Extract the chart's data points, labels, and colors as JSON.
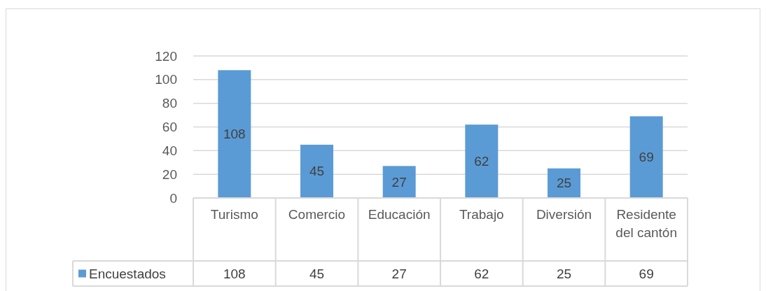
{
  "chart_data": {
    "type": "bar",
    "categories": [
      "Turismo",
      "Comercio",
      "Educación",
      "Trabajo",
      "Diversión",
      "Residente del cantón"
    ],
    "series": [
      {
        "name": "Encuestados",
        "color": "#5b9bd5",
        "values": [
          108,
          45,
          27,
          62,
          25,
          69
        ]
      }
    ],
    "ylim": [
      0,
      120
    ],
    "yticks": [
      0,
      20,
      40,
      60,
      80,
      100,
      120
    ],
    "grid": "y",
    "data_labels": true,
    "legend": "bottom",
    "annotations": [
      "108",
      "45",
      "27",
      "62",
      "25",
      "69"
    ]
  }
}
